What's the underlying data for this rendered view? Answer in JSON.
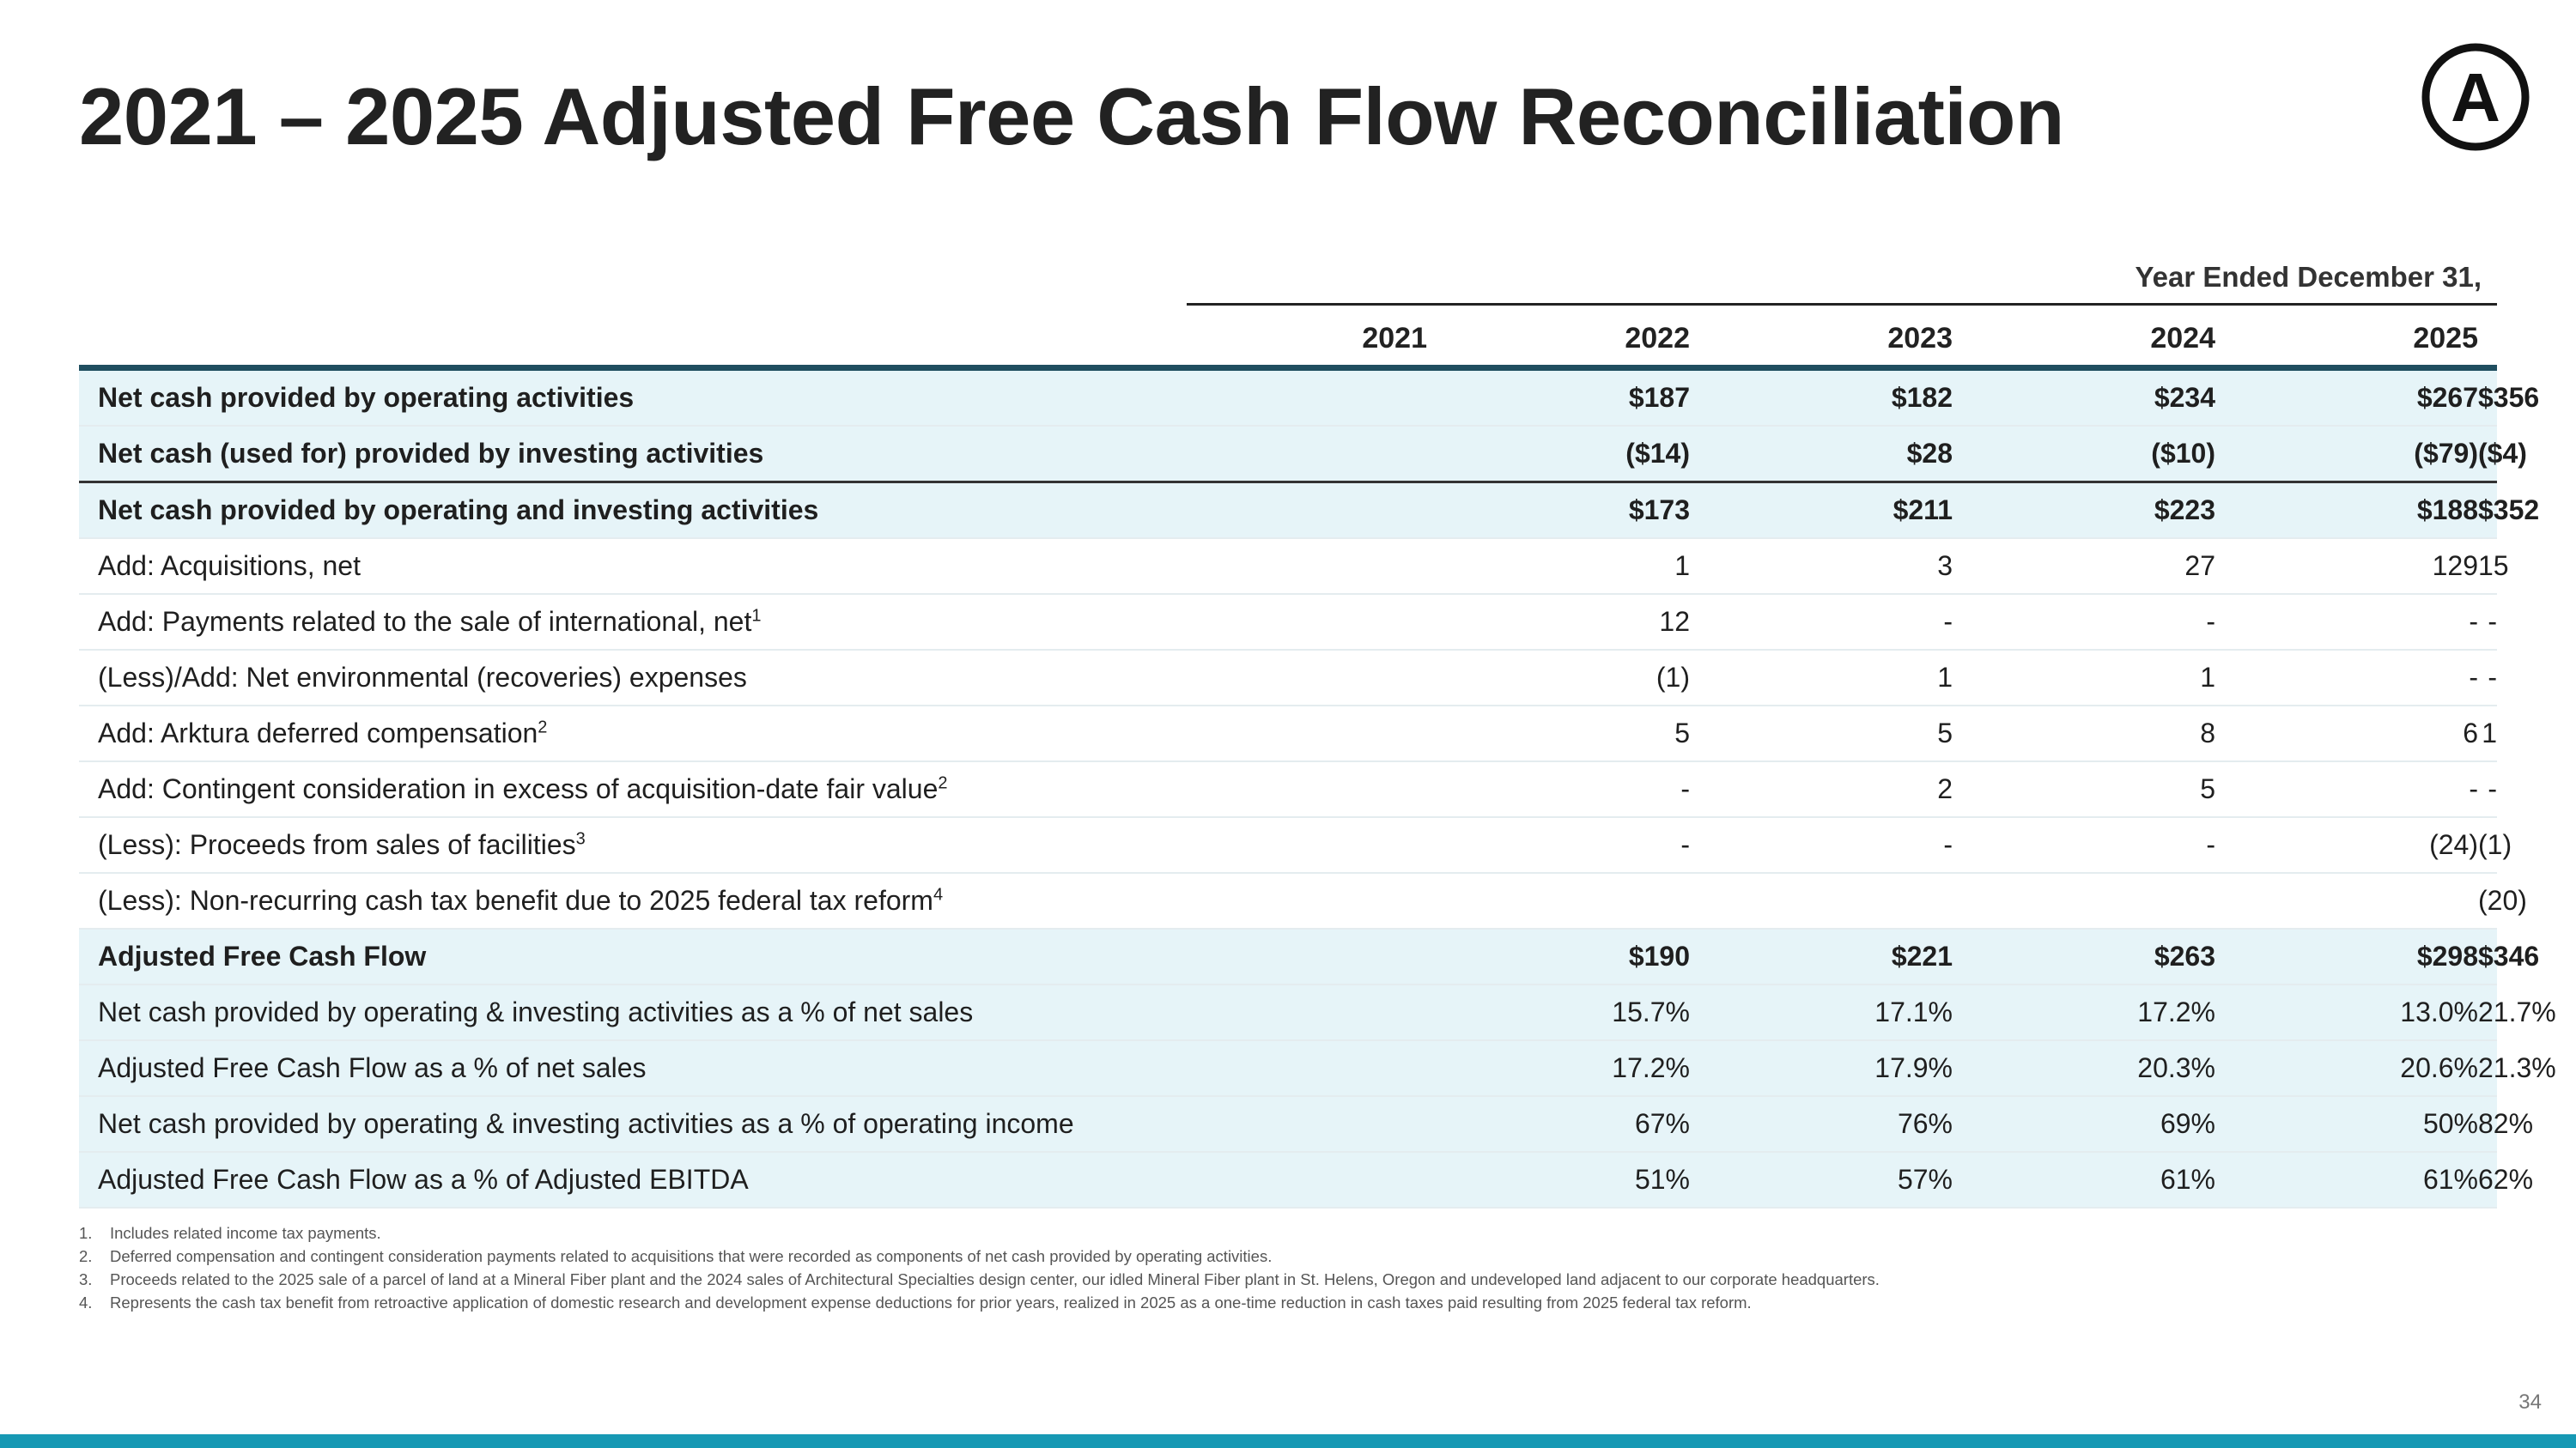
{
  "title": "2021 – 2025 Adjusted Free Cash Flow Reconciliation",
  "logo": {
    "icon": "circled-a-logo",
    "letter": "A",
    "color": "#111111"
  },
  "period_header": "Year Ended December 31,",
  "years": [
    "2021",
    "2022",
    "2023",
    "2024",
    "2025"
  ],
  "rows": [
    {
      "label": "Net cash provided by operating activities",
      "sup": "",
      "values": [
        "$187",
        "$182",
        "$234",
        "$267",
        "$356"
      ],
      "bold": true,
      "shaded": true,
      "separator": false
    },
    {
      "label": "Net cash (used for) provided by investing activities",
      "sup": "",
      "values": [
        "($14)",
        "$28",
        "($10)",
        "($79)",
        "($4)"
      ],
      "bold": true,
      "shaded": true,
      "separator": true
    },
    {
      "label": "Net cash provided by operating and investing activities",
      "sup": "",
      "values": [
        "$173",
        "$211",
        "$223",
        "$188",
        "$352"
      ],
      "bold": true,
      "shaded": true,
      "separator": false
    },
    {
      "label": "Add: Acquisitions, net",
      "sup": "",
      "values": [
        "1",
        "3",
        "27",
        "129",
        "15"
      ],
      "bold": false,
      "shaded": false,
      "separator": false
    },
    {
      "label": "Add: Payments related to the sale of international, net",
      "sup": "1",
      "values": [
        "12",
        "-",
        "-",
        "-",
        "-"
      ],
      "bold": false,
      "shaded": false,
      "separator": false
    },
    {
      "label": "(Less)/Add: Net environmental (recoveries) expenses",
      "sup": "",
      "values": [
        "(1)",
        "1",
        "1",
        "-",
        "-"
      ],
      "bold": false,
      "shaded": false,
      "separator": false
    },
    {
      "label": "Add: Arktura deferred compensation",
      "sup": "2",
      "values": [
        "5",
        "5",
        "8",
        "6",
        "1"
      ],
      "bold": false,
      "shaded": false,
      "separator": false
    },
    {
      "label": "Add: Contingent consideration in excess of acquisition-date fair value",
      "sup": "2",
      "values": [
        "-",
        "2",
        "5",
        "-",
        "-"
      ],
      "bold": false,
      "shaded": false,
      "separator": false
    },
    {
      "label": "(Less): Proceeds from sales of facilities",
      "sup": "3",
      "values": [
        "-",
        "-",
        "-",
        "(24)",
        "(1)"
      ],
      "bold": false,
      "shaded": false,
      "separator": false
    },
    {
      "label": "(Less): Non-recurring cash tax benefit due to 2025 federal tax reform",
      "sup": "4",
      "values": [
        "",
        "",
        "",
        "",
        "(20)"
      ],
      "bold": false,
      "shaded": false,
      "separator": false
    },
    {
      "label": "Adjusted Free Cash Flow",
      "sup": "",
      "values": [
        "$190",
        "$221",
        "$263",
        "$298",
        "$346"
      ],
      "bold": true,
      "shaded": true,
      "separator": false
    },
    {
      "label": "Net cash provided by operating & investing activities as a % of net sales",
      "sup": "",
      "values": [
        "15.7%",
        "17.1%",
        "17.2%",
        "13.0%",
        "21.7%"
      ],
      "bold": false,
      "shaded": true,
      "separator": false
    },
    {
      "label": "Adjusted Free Cash Flow as a % of net sales",
      "sup": "",
      "values": [
        "17.2%",
        "17.9%",
        "20.3%",
        "20.6%",
        "21.3%"
      ],
      "bold": false,
      "shaded": true,
      "separator": false
    },
    {
      "label": "Net cash provided by operating & investing activities as a % of operating income",
      "sup": "",
      "values": [
        "67%",
        "76%",
        "69%",
        "50%",
        "82%"
      ],
      "bold": false,
      "shaded": true,
      "separator": false
    },
    {
      "label": "Adjusted Free Cash Flow as a % of Adjusted EBITDA",
      "sup": "",
      "values": [
        "51%",
        "57%",
        "61%",
        "61%",
        "62%"
      ],
      "bold": false,
      "shaded": true,
      "separator": false
    }
  ],
  "footnotes": [
    {
      "num": "1.",
      "text": "Includes related income tax payments."
    },
    {
      "num": "2.",
      "text": "Deferred compensation and contingent consideration payments related to acquisitions that were recorded as components of net cash provided by operating activities."
    },
    {
      "num": "3.",
      "text": "Proceeds related to the 2025 sale of a parcel of land at a Mineral Fiber plant and the 2024 sales of Architectural Specialties design center, our idled Mineral Fiber plant in St. Helens, Oregon and undeveloped land adjacent to our corporate headquarters."
    },
    {
      "num": "4.",
      "text": "Represents the cash tax benefit from retroactive application of domestic research and development expense deductions for prior years, realized in 2025 as a one-time reduction in cash taxes paid resulting from 2025 federal tax reform."
    }
  ],
  "page_number": "34",
  "colors": {
    "accent_bar": "#1799b4",
    "header_rule": "#1f4e5f",
    "row_shade": "#e6f4f8"
  }
}
